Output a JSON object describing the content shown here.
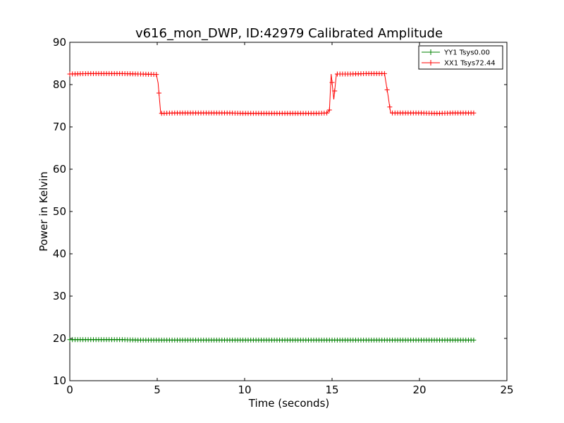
{
  "chart_data": {
    "type": "line",
    "title": "v616_mon_DWP, ID:42979 Calibrated Amplitude",
    "xlabel": "Time (seconds)",
    "ylabel": "Power in Kelvin",
    "xlim": [
      0,
      25
    ],
    "ylim": [
      10,
      90
    ],
    "xticks": [
      0,
      5,
      10,
      15,
      20,
      25
    ],
    "yticks": [
      10,
      20,
      30,
      40,
      50,
      60,
      70,
      80,
      90
    ],
    "grid": false,
    "legend_position": "top-right",
    "marker": "plus",
    "series": [
      {
        "name": "YY1 Tsys0.00",
        "color": "#008000",
        "x": [
          0,
          1,
          2,
          3,
          4,
          5,
          6,
          7,
          8,
          9,
          10,
          11,
          12,
          13,
          14,
          15,
          16,
          17,
          18,
          19,
          20,
          21,
          22,
          23.1
        ],
        "y": [
          19.7,
          19.7,
          19.7,
          19.7,
          19.6,
          19.6,
          19.6,
          19.6,
          19.6,
          19.6,
          19.6,
          19.6,
          19.6,
          19.6,
          19.6,
          19.6,
          19.6,
          19.6,
          19.6,
          19.6,
          19.6,
          19.6,
          19.6,
          19.6
        ]
      },
      {
        "name": "XX1 Tsys72.44",
        "color": "#ff0000",
        "x": [
          0,
          1,
          2,
          3,
          4,
          4.95,
          5.05,
          5.2,
          6,
          7,
          8,
          9,
          10,
          11,
          12,
          13,
          14,
          14.7,
          14.85,
          14.95,
          15.1,
          15.25,
          16,
          17,
          18,
          18.2,
          18.35,
          19,
          20,
          21,
          22,
          23.1
        ],
        "y": [
          82.5,
          82.6,
          82.6,
          82.6,
          82.5,
          82.4,
          80.4,
          73.2,
          73.3,
          73.3,
          73.3,
          73.3,
          73.2,
          73.2,
          73.2,
          73.2,
          73.2,
          73.3,
          74.0,
          82.5,
          76.5,
          82.5,
          82.5,
          82.6,
          82.6,
          77.5,
          73.3,
          73.3,
          73.3,
          73.2,
          73.3,
          73.3
        ]
      }
    ]
  }
}
